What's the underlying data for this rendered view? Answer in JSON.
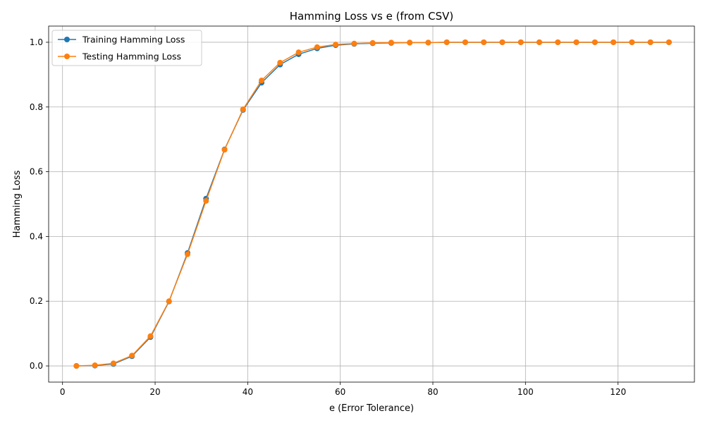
{
  "chart_data": {
    "type": "line",
    "title": "Hamming Loss vs e (from CSV)",
    "xlabel": "e (Error Tolerance)",
    "ylabel": "Hamming Loss",
    "xlim": [
      -3,
      136.5
    ],
    "ylim": [
      -0.05,
      1.05
    ],
    "xticks": [
      0,
      20,
      40,
      60,
      80,
      100,
      120
    ],
    "yticks": [
      0.0,
      0.2,
      0.4,
      0.6,
      0.8,
      1.0
    ],
    "grid": true,
    "legend_position": "top-left",
    "x": [
      3,
      7,
      11,
      15,
      19,
      23,
      27,
      31,
      35,
      39,
      43,
      47,
      51,
      55,
      59,
      63,
      67,
      71,
      75,
      79,
      83,
      87,
      91,
      95,
      99,
      103,
      107,
      111,
      115,
      119,
      123,
      127,
      131
    ],
    "series": [
      {
        "name": "Training Hamming Loss",
        "color": "#1f77b4",
        "values": [
          0.0,
          0.001,
          0.006,
          0.03,
          0.089,
          0.199,
          0.349,
          0.517,
          0.669,
          0.791,
          0.875,
          0.931,
          0.963,
          0.981,
          0.991,
          0.995,
          0.997,
          0.998,
          0.999,
          0.999,
          1.0,
          1.0,
          1.0,
          1.0,
          1.0,
          1.0,
          1.0,
          1.0,
          1.0,
          1.0,
          1.0,
          1.0,
          1.0
        ]
      },
      {
        "name": "Testing Hamming Loss",
        "color": "#ff7f0e",
        "values": [
          0.0,
          0.002,
          0.008,
          0.032,
          0.092,
          0.2,
          0.345,
          0.51,
          0.668,
          0.793,
          0.882,
          0.937,
          0.969,
          0.985,
          0.993,
          0.996,
          0.998,
          0.999,
          0.999,
          0.999,
          1.0,
          1.0,
          1.0,
          1.0,
          1.0,
          1.0,
          1.0,
          1.0,
          1.0,
          1.0,
          1.0,
          1.0,
          1.0
        ]
      }
    ]
  }
}
